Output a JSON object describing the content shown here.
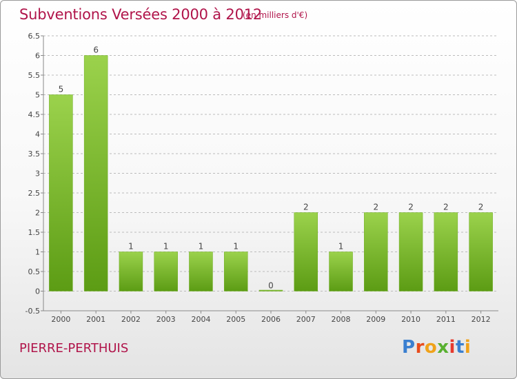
{
  "title": "Subventions Versées 2000 à 2012",
  "subtitle": "(en milliers d'€)",
  "commune": "PIERRE-PERTHUIS",
  "brand": {
    "text": "Proxiti",
    "letter_colors": [
      "#3a7fd0",
      "#e84c1c",
      "#f0a21a",
      "#58b030",
      "#e63a2e",
      "#3a7fd0",
      "#f0a21a"
    ]
  },
  "colors": {
    "title": "#b0144a",
    "bar_light": "#9bd24c",
    "bar_dark": "#5c9c14",
    "axis": "#888888",
    "grid": "#bbbbbb"
  },
  "chart_data": {
    "type": "bar",
    "categories": [
      "2000",
      "2001",
      "2002",
      "2003",
      "2004",
      "2005",
      "2006",
      "2007",
      "2008",
      "2009",
      "2010",
      "2011",
      "2012"
    ],
    "values": [
      5,
      6,
      1,
      1,
      1,
      1,
      0,
      2,
      1,
      2,
      2,
      2,
      2
    ],
    "data_labels": [
      "5",
      "6",
      "1",
      "1",
      "1",
      "1",
      "0",
      "2",
      "1",
      "2",
      "2",
      "2",
      "2"
    ],
    "ylim": [
      -0.5,
      6.5
    ],
    "yticks": [
      "-0.5",
      "0",
      "0.5",
      "1",
      "1.5",
      "2",
      "2.5",
      "3",
      "3.5",
      "4",
      "4.5",
      "5",
      "5.5",
      "6",
      "6.5"
    ],
    "ytick_values": [
      -0.5,
      0,
      0.5,
      1,
      1.5,
      2,
      2.5,
      3,
      3.5,
      4,
      4.5,
      5,
      5.5,
      6,
      6.5
    ],
    "grid": "horizontal dashed",
    "xlabel": "",
    "ylabel": ""
  }
}
